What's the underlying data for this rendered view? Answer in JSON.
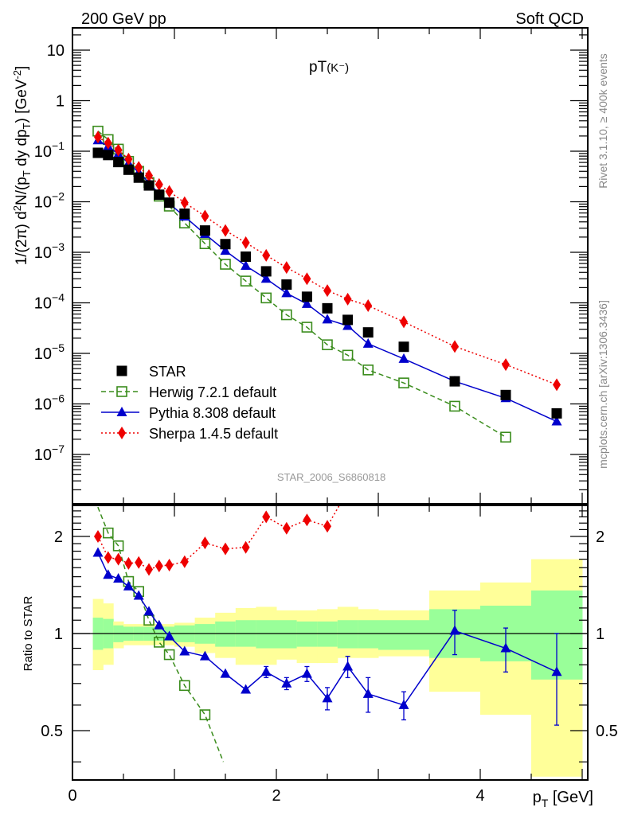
{
  "header": {
    "left": "200 GeV pp",
    "right": "Soft QCD"
  },
  "side_labels": {
    "rivet": "Rivet 3.1.10, ≥ 400k events",
    "mcplots": "mcplots.cern.ch [arXiv:1306.3436]"
  },
  "chart_data": [
    {
      "type": "scatter",
      "panel": "main",
      "title": "pT(K⁻)",
      "title_main": "pT",
      "title_sub": "(K⁻)",
      "analysis_id": "STAR_2006_S6860818",
      "ylabel": "1/(2π) d²N/(p_T dy dp_T) [GeV⁻²]",
      "yscale": "log",
      "ylim": [
        2e-08,
        30
      ],
      "xlim": [
        0,
        5.06
      ],
      "ytick_labels": [
        "10⁻⁷",
        "10⁻⁶",
        "10⁻⁵",
        "10⁻⁴",
        "10⁻³",
        "10⁻²",
        "10⁻¹",
        "1",
        "10"
      ],
      "ytick_values": [
        1e-07,
        1e-06,
        1e-05,
        0.0001,
        0.001,
        0.01,
        0.1,
        1,
        10
      ],
      "legend_position": "bottom-left",
      "x": [
        0.25,
        0.35,
        0.45,
        0.55,
        0.65,
        0.75,
        0.85,
        0.95,
        1.1,
        1.3,
        1.5,
        1.7,
        1.9,
        2.1,
        2.3,
        2.5,
        2.7,
        2.9,
        3.25,
        3.75,
        4.25,
        4.75
      ],
      "series": [
        {
          "name": "STAR",
          "color": "#000000",
          "marker": "square-filled",
          "line": "none",
          "values": [
            0.093,
            0.084,
            0.061,
            0.043,
            0.03,
            0.021,
            0.0138,
            0.0096,
            0.0058,
            0.0027,
            0.00145,
            0.00082,
            0.00042,
            0.00023,
            0.000132,
            7.8e-05,
            4.6e-05,
            2.6e-05,
            1.35e-05,
            2.8e-06,
            1.5e-06,
            6.5e-07
          ]
        },
        {
          "name": "Herwig 7.2.1 default",
          "color": "#3a8c1c",
          "marker": "square-open",
          "line": "dashed",
          "x": [
            0.25,
            0.35,
            0.45,
            0.55,
            0.65,
            0.75,
            0.85,
            0.95,
            1.1,
            1.3,
            1.5,
            1.7,
            1.9,
            2.1,
            2.3,
            2.5,
            2.7,
            2.9,
            3.25,
            3.75,
            4.25
          ],
          "values": [
            0.25,
            0.17,
            0.11,
            0.063,
            0.04,
            0.024,
            0.0129,
            0.0082,
            0.0038,
            0.00148,
            0.00058,
            0.00027,
            0.000125,
            5.8e-05,
            3.3e-05,
            1.48e-05,
            9.2e-06,
            4.7e-06,
            2.6e-06,
            9e-07,
            2.2e-07
          ]
        },
        {
          "name": "Pythia 8.308 default",
          "color": "#0000cc",
          "marker": "triangle-filled",
          "line": "solid",
          "values": [
            0.165,
            0.125,
            0.088,
            0.058,
            0.038,
            0.024,
            0.0143,
            0.0092,
            0.0051,
            0.0023,
            0.00107,
            0.00054,
            0.0003,
            0.000155,
            9.5e-05,
            4.7e-05,
            3.5e-05,
            1.55e-05,
            7.8e-06,
            2.8e-06,
            1.3e-06,
            4.5e-07
          ]
        },
        {
          "name": "Sherpa 1.4.5 default",
          "color": "#ee0000",
          "marker": "diamond-filled",
          "line": "dotted",
          "values": [
            0.19,
            0.145,
            0.105,
            0.07,
            0.048,
            0.033,
            0.022,
            0.016,
            0.0096,
            0.0052,
            0.0027,
            0.00155,
            0.00087,
            0.0005,
            0.0003,
            0.000175,
            0.000118,
            8.8e-05,
            4.2e-05,
            1.37e-05,
            6e-06,
            2.4e-06
          ]
        }
      ]
    },
    {
      "type": "scatter",
      "panel": "ratio",
      "ylabel": "Ratio to STAR",
      "xlabel": "p_T [GeV]",
      "xlabel_main": "p",
      "xlabel_sub": "T",
      "xlabel_unit": " [GeV]",
      "yscale": "log",
      "ylim": [
        0.4,
        2.55
      ],
      "xlim": [
        0,
        5.06
      ],
      "ytick_labels": [
        "0.5",
        "1",
        "2"
      ],
      "ytick_values": [
        0.5,
        1,
        2
      ],
      "xtick_labels": [
        "0",
        "2",
        "4"
      ],
      "xtick_values": [
        0,
        2,
        4
      ],
      "reference_line": 1,
      "bands": {
        "edges": [
          0.2,
          0.3,
          0.4,
          0.5,
          0.6,
          0.7,
          0.8,
          0.9,
          1.0,
          1.2,
          1.4,
          1.6,
          1.8,
          2.0,
          2.2,
          2.4,
          2.6,
          2.8,
          3.0,
          3.5,
          4.0,
          4.5,
          5.0
        ],
        "inner_color": "#99ff99",
        "outer_color": "#ffff99",
        "inner_lo": [
          0.89,
          0.9,
          0.94,
          0.95,
          0.95,
          0.95,
          0.95,
          0.95,
          0.94,
          0.93,
          0.91,
          0.91,
          0.9,
          0.9,
          0.91,
          0.91,
          0.9,
          0.9,
          0.89,
          0.84,
          0.82,
          0.72,
          0.72
        ],
        "inner_hi": [
          1.12,
          1.11,
          1.06,
          1.05,
          1.05,
          1.05,
          1.05,
          1.05,
          1.06,
          1.07,
          1.09,
          1.1,
          1.1,
          1.1,
          1.09,
          1.09,
          1.1,
          1.1,
          1.1,
          1.19,
          1.22,
          1.36,
          1.36
        ],
        "outer_lo": [
          0.77,
          0.8,
          0.9,
          0.92,
          0.92,
          0.92,
          0.92,
          0.92,
          0.91,
          0.87,
          0.84,
          0.8,
          0.8,
          0.83,
          0.81,
          0.81,
          0.84,
          0.84,
          0.85,
          0.66,
          0.56,
          0.36,
          0.36
        ],
        "outer_hi": [
          1.28,
          1.24,
          1.09,
          1.07,
          1.07,
          1.07,
          1.07,
          1.07,
          1.08,
          1.12,
          1.16,
          1.2,
          1.21,
          1.18,
          1.18,
          1.19,
          1.21,
          1.19,
          1.18,
          1.36,
          1.44,
          1.7,
          1.7
        ]
      },
      "series": [
        {
          "name": "Herwig 7.2.1 default",
          "color": "#3a8c1c",
          "marker": "square-open",
          "line": "dashed",
          "x": [
            0.35,
            0.45,
            0.55,
            0.65,
            0.75,
            0.85,
            0.95,
            1.1,
            1.3
          ],
          "values": [
            2.05,
            1.87,
            1.45,
            1.35,
            1.1,
            0.94,
            0.86,
            0.69,
            0.56
          ],
          "line_extends": {
            "from": [
              0.22,
              2.6
            ],
            "to": [
              1.48,
              0.4
            ]
          }
        },
        {
          "name": "Pythia 8.308 default",
          "color": "#0000cc",
          "marker": "triangle-filled",
          "line": "solid",
          "x": [
            0.25,
            0.35,
            0.45,
            0.55,
            0.65,
            0.75,
            0.85,
            0.95,
            1.1,
            1.3,
            1.5,
            1.7,
            1.9,
            2.1,
            2.3,
            2.5,
            2.7,
            2.9,
            3.25,
            3.75,
            4.25,
            4.75
          ],
          "values": [
            1.78,
            1.52,
            1.48,
            1.4,
            1.31,
            1.17,
            1.06,
            0.98,
            0.88,
            0.85,
            0.75,
            0.67,
            0.76,
            0.7,
            0.75,
            0.63,
            0.79,
            0.65,
            0.6,
            1.02,
            0.9,
            0.76
          ],
          "err": [
            0,
            0,
            0,
            0,
            0,
            0,
            0,
            0,
            0,
            0,
            0,
            0,
            0.03,
            0.03,
            0.04,
            0.05,
            0.06,
            0.08,
            0.06,
            0.16,
            0.14,
            0.24
          ]
        },
        {
          "name": "Sherpa 1.4.5 default",
          "color": "#ee0000",
          "marker": "diamond-filled",
          "line": "dotted",
          "x": [
            0.25,
            0.35,
            0.45,
            0.55,
            0.65,
            0.75,
            0.85,
            0.95,
            1.1,
            1.3,
            1.5,
            1.7,
            1.9,
            2.1,
            2.3,
            2.5
          ],
          "values": [
            2.0,
            1.72,
            1.7,
            1.65,
            1.66,
            1.58,
            1.62,
            1.63,
            1.67,
            1.91,
            1.83,
            1.85,
            2.3,
            2.12,
            2.25,
            2.15
          ],
          "line_extends": {
            "to": [
              2.65,
              2.6
            ]
          }
        }
      ]
    }
  ]
}
